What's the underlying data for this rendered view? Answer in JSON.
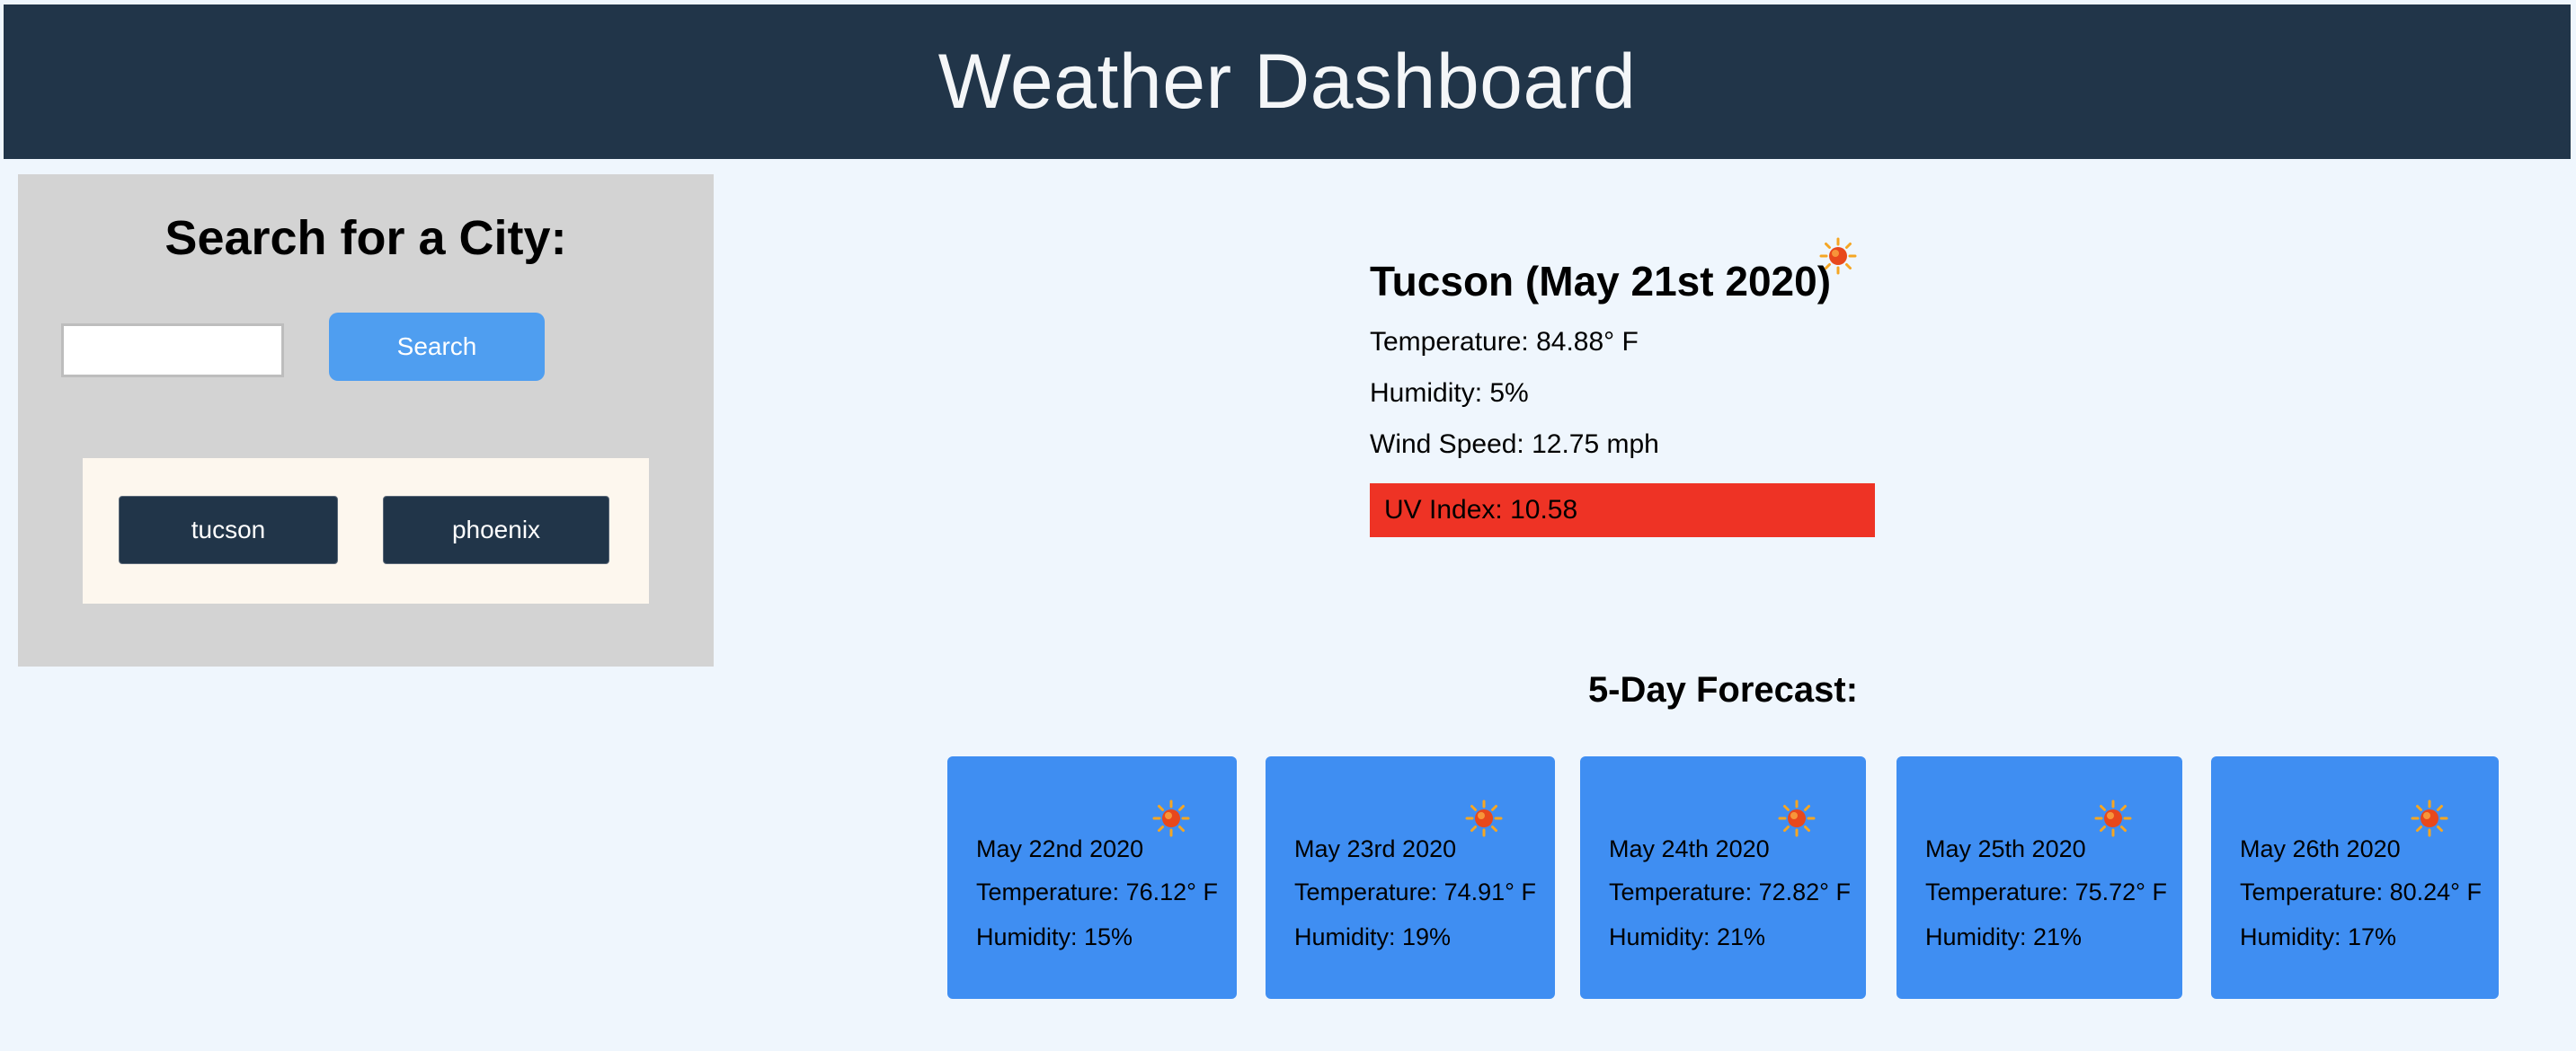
{
  "header": {
    "title": "Weather Dashboard"
  },
  "search": {
    "heading": "Search for a City:",
    "input_value": "",
    "input_placeholder": "",
    "button_label": "Search",
    "history": [
      "tucson",
      "phoenix"
    ]
  },
  "current": {
    "title": "Tucson (May 21st 2020)",
    "icon": "sun-icon",
    "temperature": "Temperature: 84.88° F",
    "humidity": "Humidity: 5%",
    "wind": "Wind Speed: 12.75 mph",
    "uv": "UV Index: 10.58",
    "uv_color": "#ee3325"
  },
  "forecast": {
    "heading": "5-Day Forecast:",
    "card_color": "#3f8ef2",
    "days": [
      {
        "date": "May 22nd 2020",
        "temperature": "Temperature: 76.12° F",
        "humidity": "Humidity: 15%",
        "icon": "sun-icon"
      },
      {
        "date": "May 23rd 2020",
        "temperature": "Temperature: 74.91° F",
        "humidity": "Humidity: 19%",
        "icon": "sun-icon"
      },
      {
        "date": "May 24th 2020",
        "temperature": "Temperature: 72.82° F",
        "humidity": "Humidity: 21%",
        "icon": "sun-icon"
      },
      {
        "date": "May 25th 2020",
        "temperature": "Temperature: 75.72° F",
        "humidity": "Humidity: 21%",
        "icon": "sun-icon"
      },
      {
        "date": "May 26th 2020",
        "temperature": "Temperature: 80.24° F",
        "humidity": "Humidity: 17%",
        "icon": "sun-icon"
      }
    ]
  },
  "colors": {
    "header_bg": "#213549",
    "page_bg": "#eff6fd",
    "sidebar_bg": "#d3d3d3",
    "history_bg": "#fdf7ee",
    "search_button": "#4f9ef0"
  }
}
